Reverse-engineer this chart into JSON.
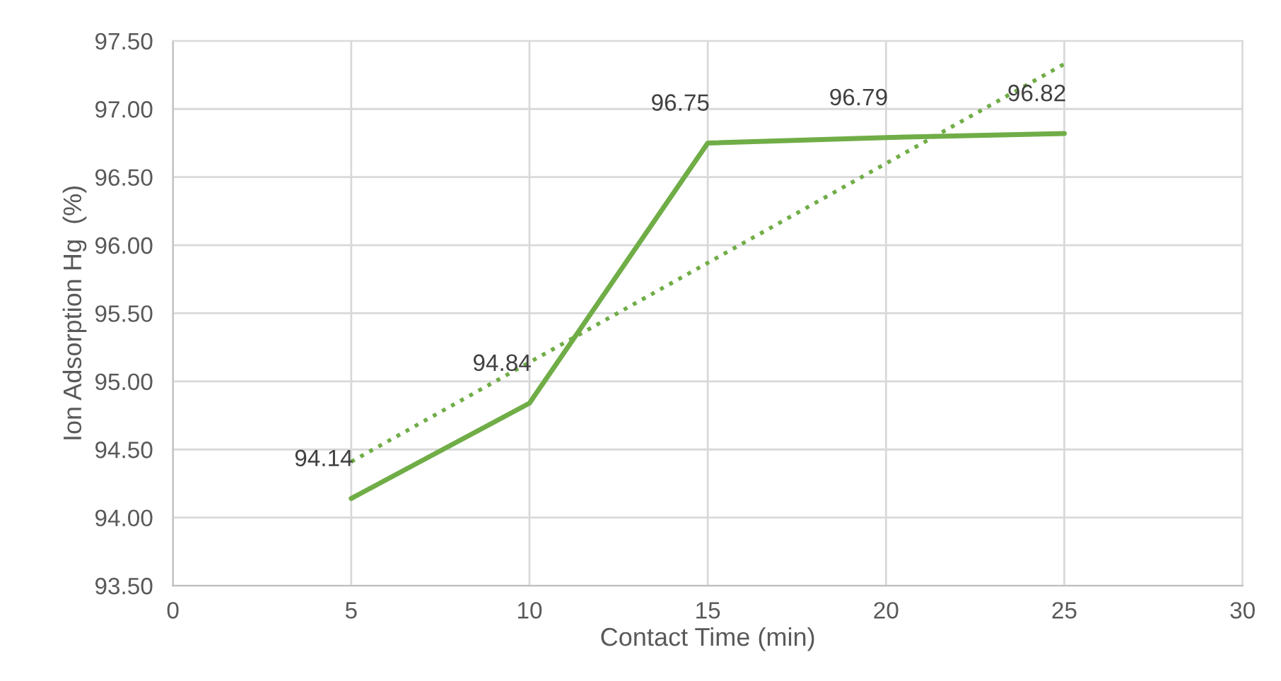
{
  "chart_data": {
    "type": "line",
    "xlabel": "Contact Time (min)",
    "ylabel": "Ion Adsorption Hg  (%)",
    "series": [
      {
        "color": "#70ad47",
        "x": [
          5,
          10,
          15,
          20,
          25
        ],
        "values": [
          94.14,
          94.84,
          96.75,
          96.79,
          96.82
        ],
        "line_style": "solid",
        "data_labels": true
      },
      {
        "color": "#70ad47",
        "x": [
          5,
          25
        ],
        "values": [
          94.41,
          97.33
        ],
        "line_style": "dotted"
      }
    ],
    "xlim": [
      0,
      30
    ],
    "xticks": [
      0,
      5,
      10,
      15,
      20,
      25,
      30
    ],
    "ylim": [
      93.5,
      97.5
    ],
    "yticks": [
      {
        "value": 93.5,
        "label": "93.50"
      },
      {
        "value": 94.0,
        "label": "94.00"
      },
      {
        "value": 94.5,
        "label": "94.50"
      },
      {
        "value": 95.0,
        "label": "95.00"
      },
      {
        "value": 95.5,
        "label": "95.50"
      },
      {
        "value": 96.0,
        "label": "96.00"
      },
      {
        "value": 96.5,
        "label": "96.50"
      },
      {
        "value": 97.0,
        "label": "97.00"
      },
      {
        "value": 97.5,
        "label": "97.50"
      }
    ],
    "grid": true,
    "marker": "none",
    "legend": false
  }
}
